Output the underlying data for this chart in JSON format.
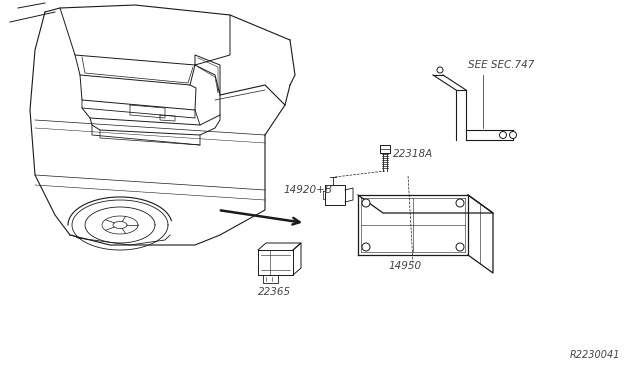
{
  "bg_color": "#ffffff",
  "line_color": "#1a1a1a",
  "text_color": "#444444",
  "labels": {
    "see_sec": "SEE SEC.747",
    "part1": "22318A",
    "part2": "14920+B",
    "part3": "14950",
    "part4": "22365",
    "ref": "R2230041"
  },
  "figsize": [
    6.4,
    3.72
  ],
  "dpi": 100
}
